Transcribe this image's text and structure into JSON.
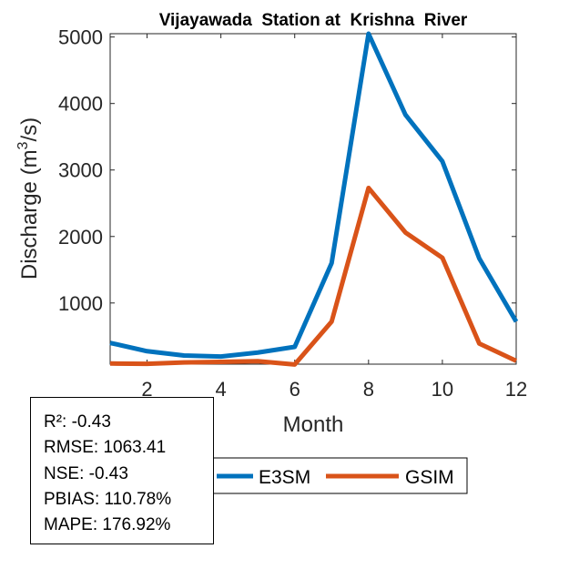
{
  "chart_data": {
    "type": "line",
    "title": "Vijayawada  Station at  Krishna  River",
    "xlabel": "Month",
    "ylabel_main": "Discharge (m",
    "ylabel_sup": "3",
    "ylabel_end": "/s)",
    "x": [
      1,
      2,
      3,
      4,
      5,
      6,
      7,
      8,
      9,
      10,
      11,
      12
    ],
    "xlim": [
      1,
      12
    ],
    "ylim": [
      80,
      5050
    ],
    "xticks": [
      2,
      4,
      6,
      8,
      10,
      12
    ],
    "yticks": [
      1000,
      2000,
      3000,
      4000,
      5000
    ],
    "series": [
      {
        "name": "E3SM",
        "color": "#0072BD",
        "values": [
          400,
          275,
          210,
          195,
          255,
          340,
          1600,
          5050,
          3830,
          3130,
          1670,
          720
        ]
      },
      {
        "name": "GSIM",
        "color": "#D95319",
        "values": [
          90,
          85,
          105,
          115,
          125,
          75,
          720,
          2730,
          2060,
          1680,
          390,
          130
        ]
      }
    ],
    "grid": false,
    "legend": "bottom-center"
  },
  "stats": [
    "R²: -0.43",
    "RMSE: 1063.41",
    "NSE: -0.43",
    "PBIAS: 110.78%",
    "MAPE: 176.92%"
  ]
}
